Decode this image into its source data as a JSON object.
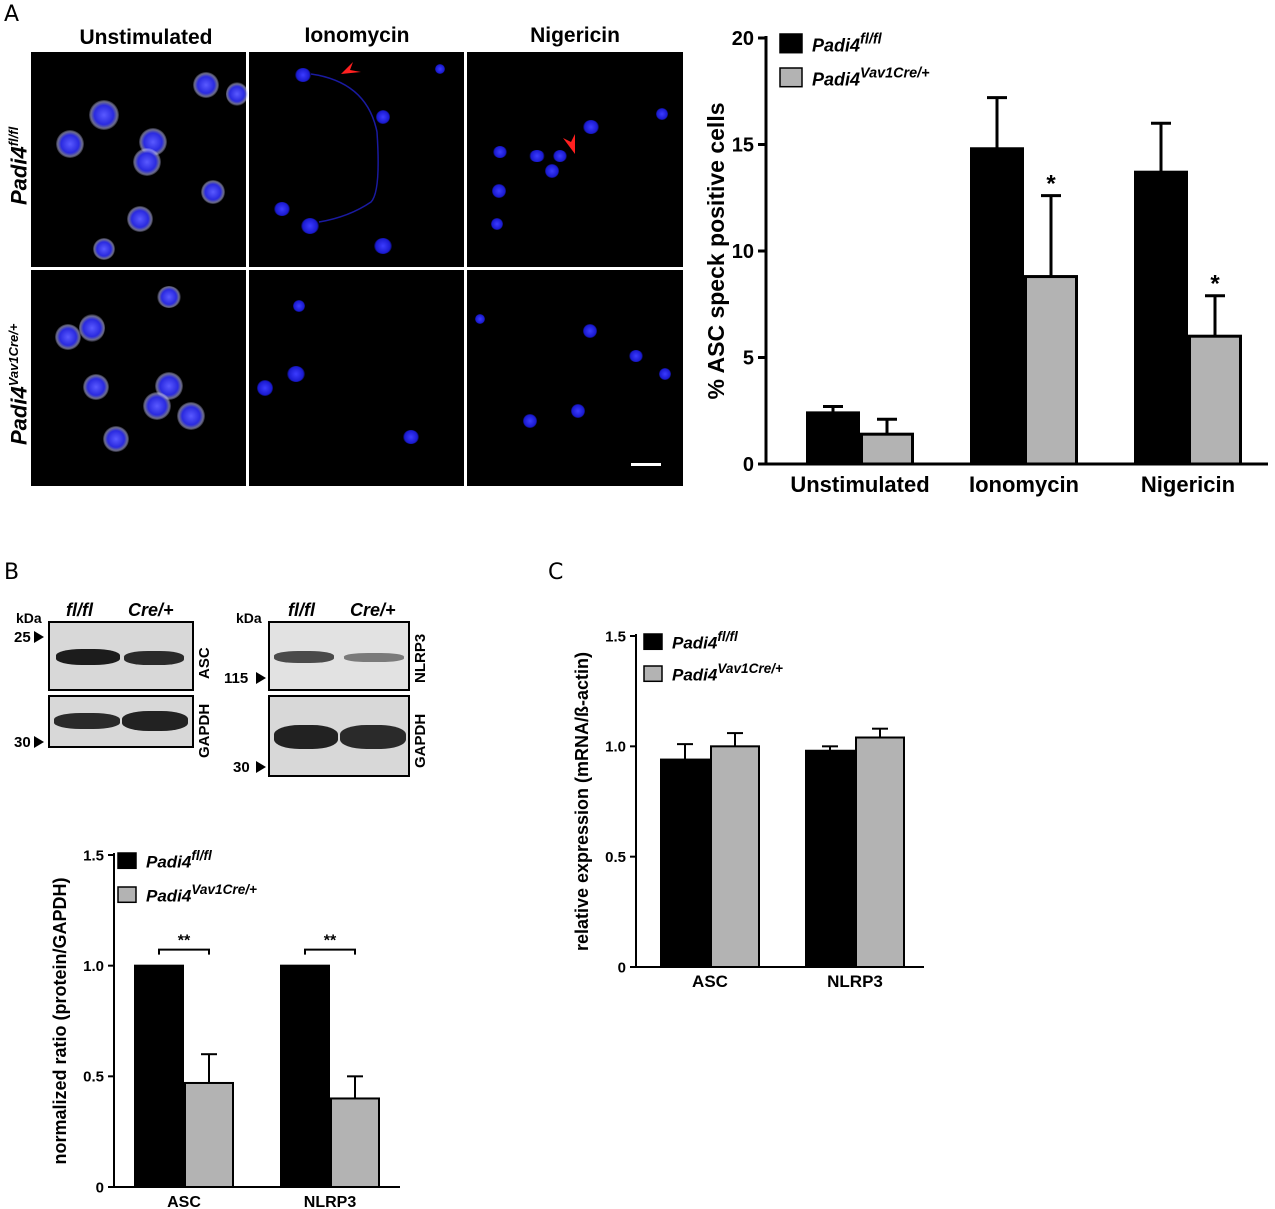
{
  "panel_labels": {
    "a": "A",
    "b": "B",
    "c": "C"
  },
  "microscopy": {
    "columns": [
      "Unstimulated",
      "Ionomycin",
      "Nigericin"
    ],
    "rows": [
      {
        "base": "Padi4",
        "sup": "fl/fl"
      },
      {
        "base": "Padi4",
        "sup": "Vav1Cre/+"
      }
    ]
  },
  "western": {
    "kda_label": "kDa",
    "lane_labels": [
      "fl/fl",
      "Cre/+"
    ],
    "left": {
      "top_protein": "ASC",
      "bottom_protein": "GAPDH",
      "markers": [
        "25",
        "30"
      ]
    },
    "right": {
      "top_protein": "NLRP3",
      "bottom_protein": "GAPDH",
      "markers": [
        "115",
        "30"
      ]
    }
  },
  "chart_data": [
    {
      "id": "A",
      "type": "bar",
      "ylabel": "% ASC speck positive cells",
      "categories": [
        "Unstimulated",
        "Ionomycin",
        "Nigericin"
      ],
      "ylim": [
        0,
        20
      ],
      "yticks": [
        "0",
        "5",
        "10",
        "15",
        "20"
      ],
      "legend": [
        {
          "base": "Padi4",
          "sup": "fl/fl"
        },
        {
          "base": "Padi4",
          "sup": "Vav1Cre/+"
        }
      ],
      "series": [
        {
          "color": "#000000",
          "values": [
            2.4,
            14.8,
            13.7
          ],
          "errors": [
            0.3,
            2.4,
            2.3
          ]
        },
        {
          "color": "#b3b3b3",
          "values": [
            1.4,
            8.8,
            6.0
          ],
          "errors": [
            0.7,
            3.8,
            1.9
          ]
        }
      ],
      "significance": [
        "",
        "*",
        "*"
      ]
    },
    {
      "id": "B",
      "type": "bar",
      "ylabel": "normalized ratio (protein/GAPDH)",
      "categories": [
        "ASC",
        "NLRP3"
      ],
      "ylim": [
        0,
        1.5
      ],
      "yticks": [
        "0",
        "0.5",
        "1.0",
        "1.5"
      ],
      "legend": [
        {
          "base": "Padi4",
          "sup": "fl/fl"
        },
        {
          "base": "Padi4",
          "sup": "Vav1Cre/+"
        }
      ],
      "series": [
        {
          "color": "#000000",
          "values": [
            1.0,
            1.0
          ],
          "errors": [
            0,
            0
          ]
        },
        {
          "color": "#b3b3b3",
          "values": [
            0.47,
            0.4
          ],
          "errors": [
            0.13,
            0.1
          ]
        }
      ],
      "significance": [
        "**",
        "**"
      ]
    },
    {
      "id": "C",
      "type": "bar",
      "ylabel": "relative expression (mRNA/ß-actin)",
      "categories": [
        "ASC",
        "NLRP3"
      ],
      "ylim": [
        0,
        1.5
      ],
      "yticks": [
        "0",
        "0.5",
        "1.0",
        "1.5"
      ],
      "legend": [
        {
          "base": "Padi4",
          "sup": "fl/fl"
        },
        {
          "base": "Padi4",
          "sup": "Vav1Cre/+"
        }
      ],
      "series": [
        {
          "color": "#000000",
          "values": [
            0.94,
            0.98
          ],
          "errors": [
            0.07,
            0.02
          ]
        },
        {
          "color": "#b3b3b3",
          "values": [
            1.0,
            1.04
          ],
          "errors": [
            0.06,
            0.04
          ]
        }
      ],
      "significance": [
        "",
        ""
      ]
    }
  ]
}
